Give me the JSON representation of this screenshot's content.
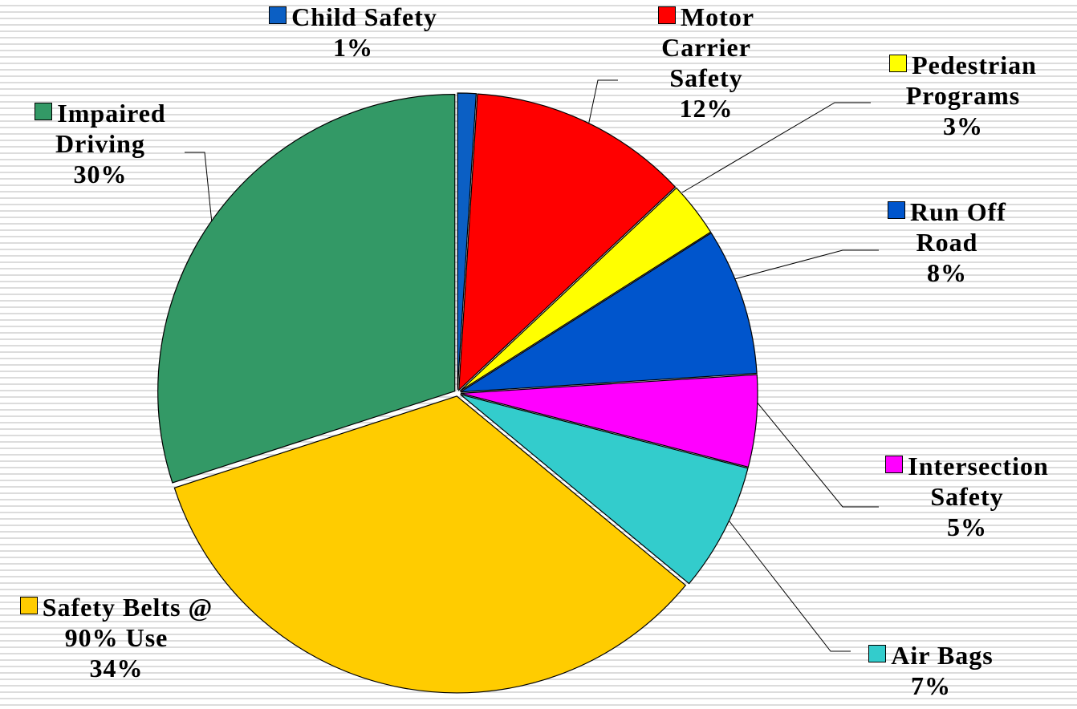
{
  "chart_data": {
    "type": "pie",
    "categories": [
      "Child Safety",
      "Motor Carrier Safety",
      "Pedestrian Programs",
      "Run Off Road",
      "Intersection Safety",
      "Air Bags",
      "Safety Belts @ 90% Use",
      "Impaired Driving"
    ],
    "values": [
      1,
      12,
      3,
      8,
      5,
      7,
      34,
      30
    ],
    "value_labels": [
      "1%",
      "12%",
      "3%",
      "8%",
      "5%",
      "7%",
      "34%",
      "30%"
    ],
    "colors": [
      "#0b5fc4",
      "#ff0000",
      "#ffff00",
      "#0055cc",
      "#ff00ff",
      "#33cccc",
      "#ffcc00",
      "#339966"
    ]
  }
}
